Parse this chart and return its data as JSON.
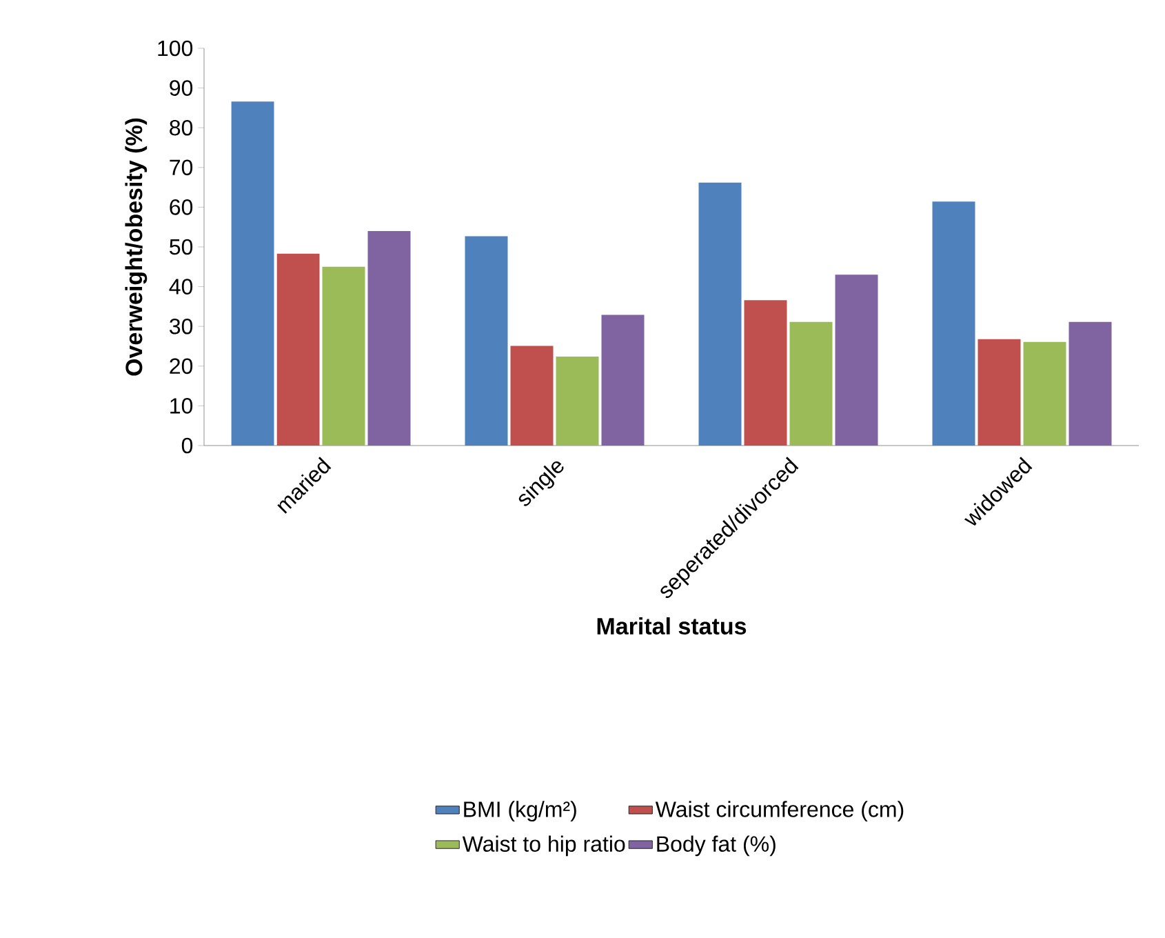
{
  "chart_data": {
    "type": "bar",
    "xlabel": "Marital status",
    "ylabel": "Overweight/obesity (%)",
    "categories": [
      "maried",
      "single",
      "seperated/divorced",
      "widowed"
    ],
    "series": [
      {
        "name": "BMI (kg/m²)",
        "color": "#4f81bd",
        "values": [
          86.6,
          52.7,
          66.2,
          61.4
        ]
      },
      {
        "name": "Waist circumference (cm)",
        "color": "#c0504d",
        "values": [
          48.3,
          25.1,
          36.6,
          26.8
        ]
      },
      {
        "name": "Waist to hip ratio",
        "color": "#9bbb59",
        "values": [
          45.0,
          22.4,
          31.1,
          26.1
        ]
      },
      {
        "name": "Body fat (%)",
        "color": "#8064a2",
        "values": [
          54.0,
          32.9,
          43.0,
          31.1
        ]
      }
    ],
    "ylim": [
      0,
      100
    ],
    "yticks": [
      0,
      10,
      20,
      30,
      40,
      50,
      60,
      70,
      80,
      90,
      100
    ],
    "grid": false,
    "legend": "bottom"
  }
}
